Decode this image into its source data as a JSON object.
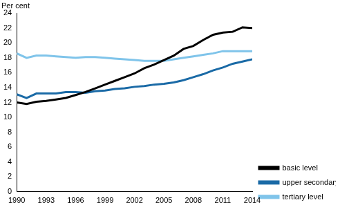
{
  "chart_data": {
    "type": "line",
    "y_label": "Per cent",
    "x": [
      1990,
      1991,
      1992,
      1993,
      1994,
      1995,
      1996,
      1997,
      1998,
      1999,
      2000,
      2001,
      2002,
      2003,
      2004,
      2005,
      2006,
      2007,
      2008,
      2009,
      2010,
      2011,
      2012,
      2013,
      2014
    ],
    "series": [
      {
        "name": "basic level",
        "color": "#000000",
        "values": [
          12.0,
          11.8,
          12.1,
          12.2,
          12.4,
          12.6,
          13.0,
          13.4,
          13.9,
          14.4,
          14.9,
          15.4,
          15.9,
          16.6,
          17.1,
          17.7,
          18.3,
          19.2,
          19.6,
          20.4,
          21.1,
          21.4,
          21.5,
          22.1,
          22.0
        ]
      },
      {
        "name": "upper secondary level",
        "color": "#1a6aa6",
        "values": [
          13.1,
          12.6,
          13.2,
          13.2,
          13.2,
          13.4,
          13.4,
          13.3,
          13.5,
          13.6,
          13.8,
          13.9,
          14.1,
          14.2,
          14.4,
          14.5,
          14.7,
          15.0,
          15.4,
          15.8,
          16.3,
          16.7,
          17.2,
          17.5,
          17.8
        ]
      },
      {
        "name": "tertiary level",
        "color": "#7fc4ea",
        "values": [
          18.6,
          18.0,
          18.3,
          18.3,
          18.2,
          18.1,
          18.0,
          18.1,
          18.1,
          18.0,
          17.9,
          17.8,
          17.7,
          17.6,
          17.6,
          17.6,
          17.8,
          18.0,
          18.2,
          18.4,
          18.6,
          18.9,
          18.9,
          18.9,
          18.9
        ]
      }
    ],
    "xlim": [
      1990,
      2014
    ],
    "xticks": [
      1990,
      1993,
      1996,
      1999,
      2002,
      2005,
      2008,
      2011,
      2014
    ],
    "ylim": [
      0,
      24
    ],
    "yticks": [
      0,
      2,
      4,
      6,
      8,
      10,
      12,
      14,
      16,
      18,
      20,
      22,
      24
    ],
    "grid": false,
    "legend": "right"
  }
}
